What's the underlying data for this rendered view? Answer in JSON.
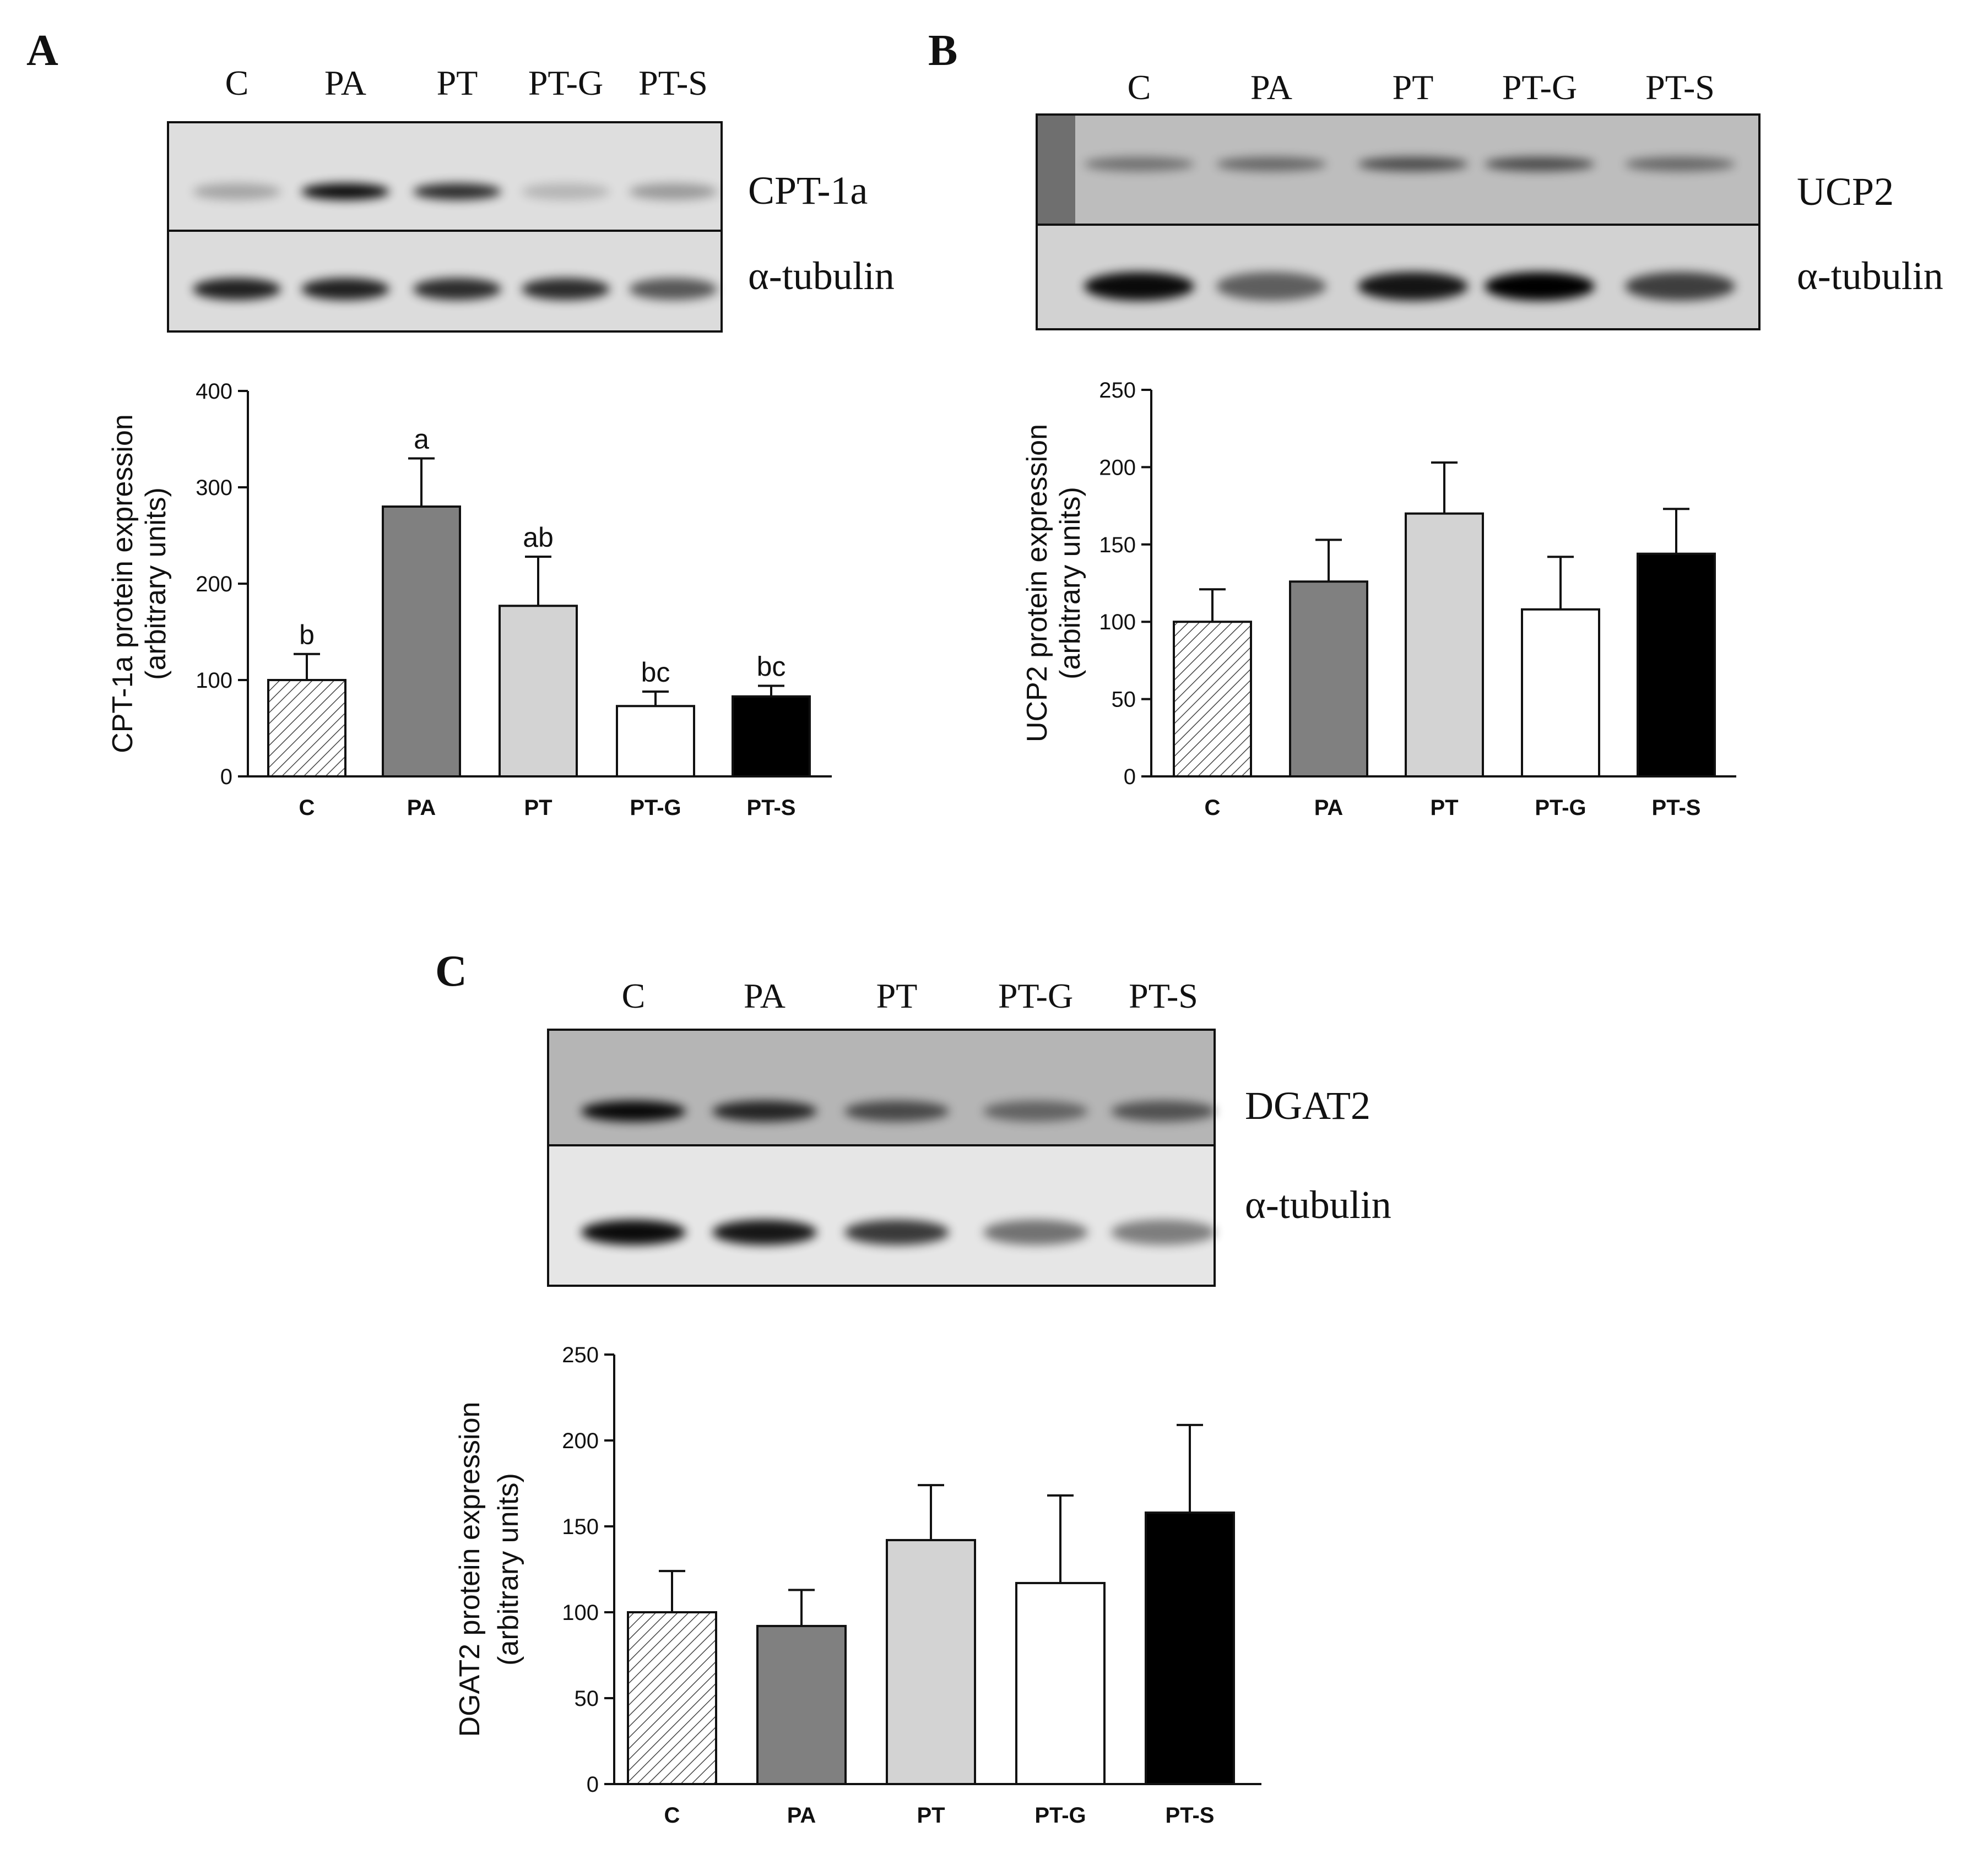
{
  "panels": [
    {
      "letter": "A",
      "blot": {
        "lanes": [
          "C",
          "PA",
          "PT",
          "PT-G",
          "PT-S"
        ],
        "rows": [
          {
            "label": "CPT-1a",
            "bg": "#dedede",
            "band_intensity": [
              0.25,
              0.95,
              0.8,
              0.18,
              0.3
            ]
          },
          {
            "label": "α-tubulin",
            "bg": "#dcdcdc",
            "band_intensity": [
              0.85,
              0.85,
              0.8,
              0.8,
              0.6
            ]
          }
        ]
      }
    },
    {
      "letter": "B",
      "blot": {
        "lanes": [
          "C",
          "PA",
          "PT",
          "PT-G",
          "PT-S"
        ],
        "rows": [
          {
            "label": "UCP2",
            "bg": "#bdbdbd",
            "band_intensity": [
              0.4,
              0.45,
              0.6,
              0.6,
              0.45
            ]
          },
          {
            "label": "α-tubulin",
            "bg": "#d2d2d2",
            "band_intensity": [
              0.95,
              0.55,
              0.9,
              1.0,
              0.7
            ]
          }
        ]
      }
    },
    {
      "letter": "C",
      "blot": {
        "lanes": [
          "C",
          "PA",
          "PT",
          "PT-G",
          "PT-S"
        ],
        "rows": [
          {
            "label": "DGAT2",
            "bg": "#b5b5b5",
            "band_intensity": [
              0.95,
              0.8,
              0.6,
              0.45,
              0.55
            ]
          },
          {
            "label": "α-tubulin",
            "bg": "#e6e6e6",
            "band_intensity": [
              0.95,
              0.9,
              0.75,
              0.5,
              0.45
            ]
          }
        ]
      }
    }
  ],
  "chart_data": [
    {
      "type": "bar",
      "panel": "A",
      "categories": [
        "C",
        "PA",
        "PT",
        "PT-G",
        "PT-S"
      ],
      "values": [
        100,
        280,
        177,
        73,
        83
      ],
      "errors": [
        27,
        50,
        51,
        15,
        11
      ],
      "significance": [
        "b",
        "a",
        "ab",
        "bc",
        "bc"
      ],
      "ylabel": [
        "CPT-1a protein expression",
        "(arbitrary units)"
      ],
      "ylim": [
        0,
        400
      ],
      "yticks": [
        0,
        100,
        200,
        300,
        400
      ],
      "bar_styles": [
        "hatched",
        "#808080",
        "#d3d3d3",
        "#ffffff",
        "#000000"
      ]
    },
    {
      "type": "bar",
      "panel": "B",
      "categories": [
        "C",
        "PA",
        "PT",
        "PT-G",
        "PT-S"
      ],
      "values": [
        100,
        126,
        170,
        108,
        144
      ],
      "errors": [
        21,
        27,
        33,
        34,
        29
      ],
      "ylabel": [
        "UCP2 protein expression",
        "(arbitrary units)"
      ],
      "ylim": [
        0,
        250
      ],
      "yticks": [
        0,
        50,
        100,
        150,
        200,
        250
      ],
      "bar_styles": [
        "hatched",
        "#808080",
        "#d3d3d3",
        "#ffffff",
        "#000000"
      ]
    },
    {
      "type": "bar",
      "panel": "C",
      "categories": [
        "C",
        "PA",
        "PT",
        "PT-G",
        "PT-S"
      ],
      "values": [
        100,
        92,
        142,
        117,
        158
      ],
      "errors": [
        24,
        21,
        32,
        51,
        51
      ],
      "ylabel": [
        "DGAT2 protein expression",
        "(arbitrary units)"
      ],
      "ylim": [
        0,
        250
      ],
      "yticks": [
        0,
        50,
        100,
        150,
        200,
        250
      ],
      "bar_styles": [
        "hatched",
        "#808080",
        "#d3d3d3",
        "#ffffff",
        "#000000"
      ]
    }
  ]
}
